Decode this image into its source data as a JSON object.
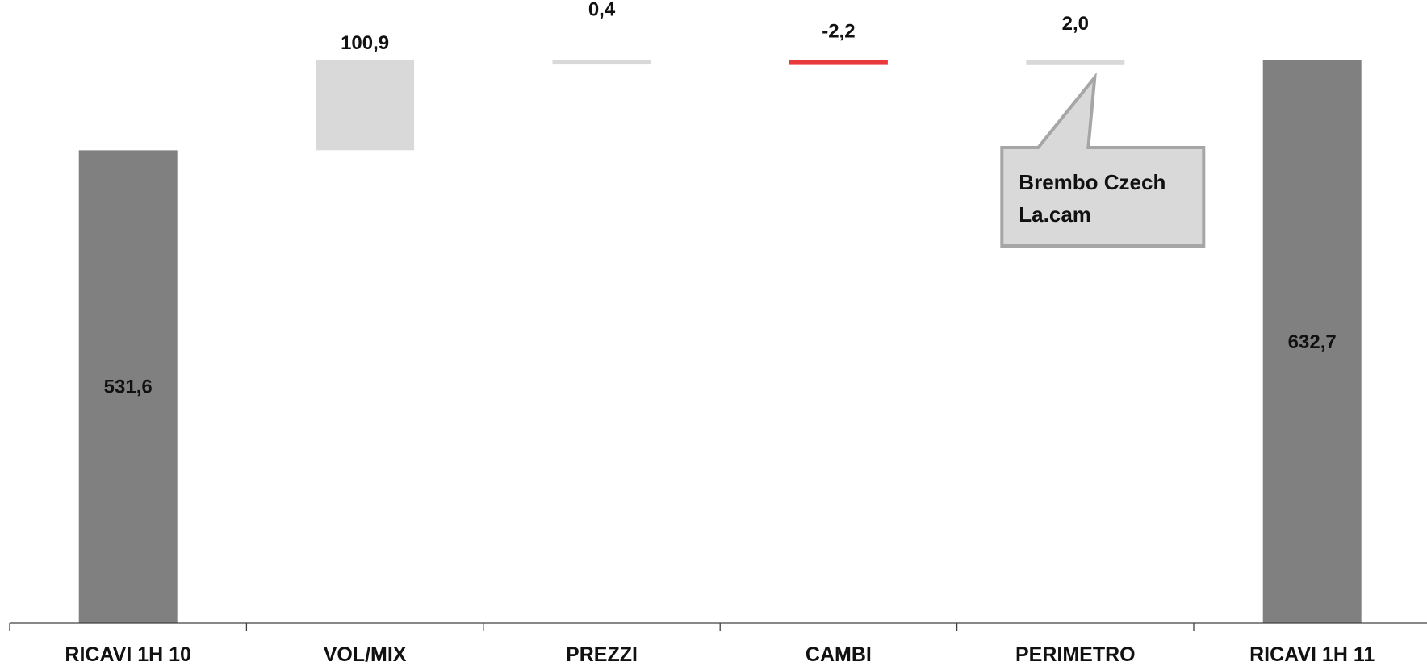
{
  "chart_data": {
    "type": "bar",
    "subtype": "waterfall",
    "title": "",
    "xlabel": "",
    "ylabel": "",
    "ylim": [
      0,
      700
    ],
    "grid": false,
    "legend": "none",
    "categories": [
      "RICAVI 1H 10",
      "VOL/MIX",
      "PREZZI",
      "CAMBI",
      "PERIMETRO",
      "RICAVI 1H 11"
    ],
    "steps": [
      {
        "category": "RICAVI 1H 10",
        "kind": "total",
        "value": 531.6,
        "label": "531,6",
        "color": "#808080"
      },
      {
        "category": "VOL/MIX",
        "kind": "delta",
        "value": 100.9,
        "label": "100,9",
        "color": "#d9d9d9"
      },
      {
        "category": "PREZZI",
        "kind": "delta",
        "value": 0.4,
        "label": "0,4",
        "color": "#d9d9d9"
      },
      {
        "category": "CAMBI",
        "kind": "delta",
        "value": -2.2,
        "label": "-2,2",
        "color": "#e8393c"
      },
      {
        "category": "PERIMETRO",
        "kind": "delta",
        "value": 2.0,
        "label": "2,0",
        "color": "#d9d9d9"
      },
      {
        "category": "RICAVI 1H 11",
        "kind": "total",
        "value": 632.7,
        "label": "632,7",
        "color": "#808080"
      }
    ],
    "annotations": [
      {
        "category": "PERIMETRO",
        "lines": [
          "Brembo Czech",
          "La.cam"
        ]
      }
    ],
    "colors": {
      "total": "#808080",
      "increase": "#d9d9d9",
      "decrease": "#e8393c",
      "axis": "#404040",
      "callout_fill": "#d9d9d9",
      "callout_border": "#a6a6a6"
    }
  }
}
